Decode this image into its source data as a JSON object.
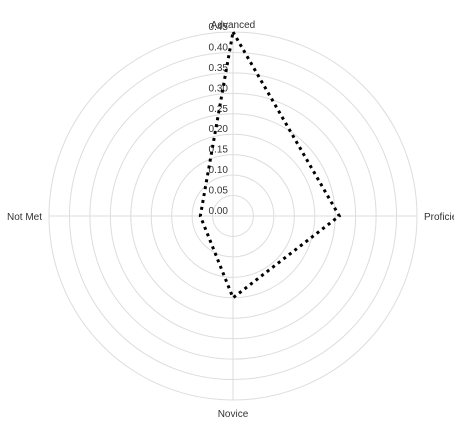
{
  "chart_data": {
    "type": "radar",
    "axes": [
      "Advanced",
      "Proficien",
      "Novice",
      "Not Met"
    ],
    "series": [
      {
        "values": [
          0.45,
          0.26,
          0.2,
          0.08
        ]
      }
    ],
    "r_range": [
      0,
      0.45
    ],
    "r_ticks": [
      "0.00",
      "0.05",
      "0.10",
      "0.15",
      "0.20",
      "0.25",
      "0.30",
      "0.35",
      "0.40",
      "0.45"
    ],
    "grid": true,
    "colors": {
      "grid": "#dddddd",
      "series_line": "#000000",
      "text": "#333333"
    },
    "line_style": "dotted"
  }
}
